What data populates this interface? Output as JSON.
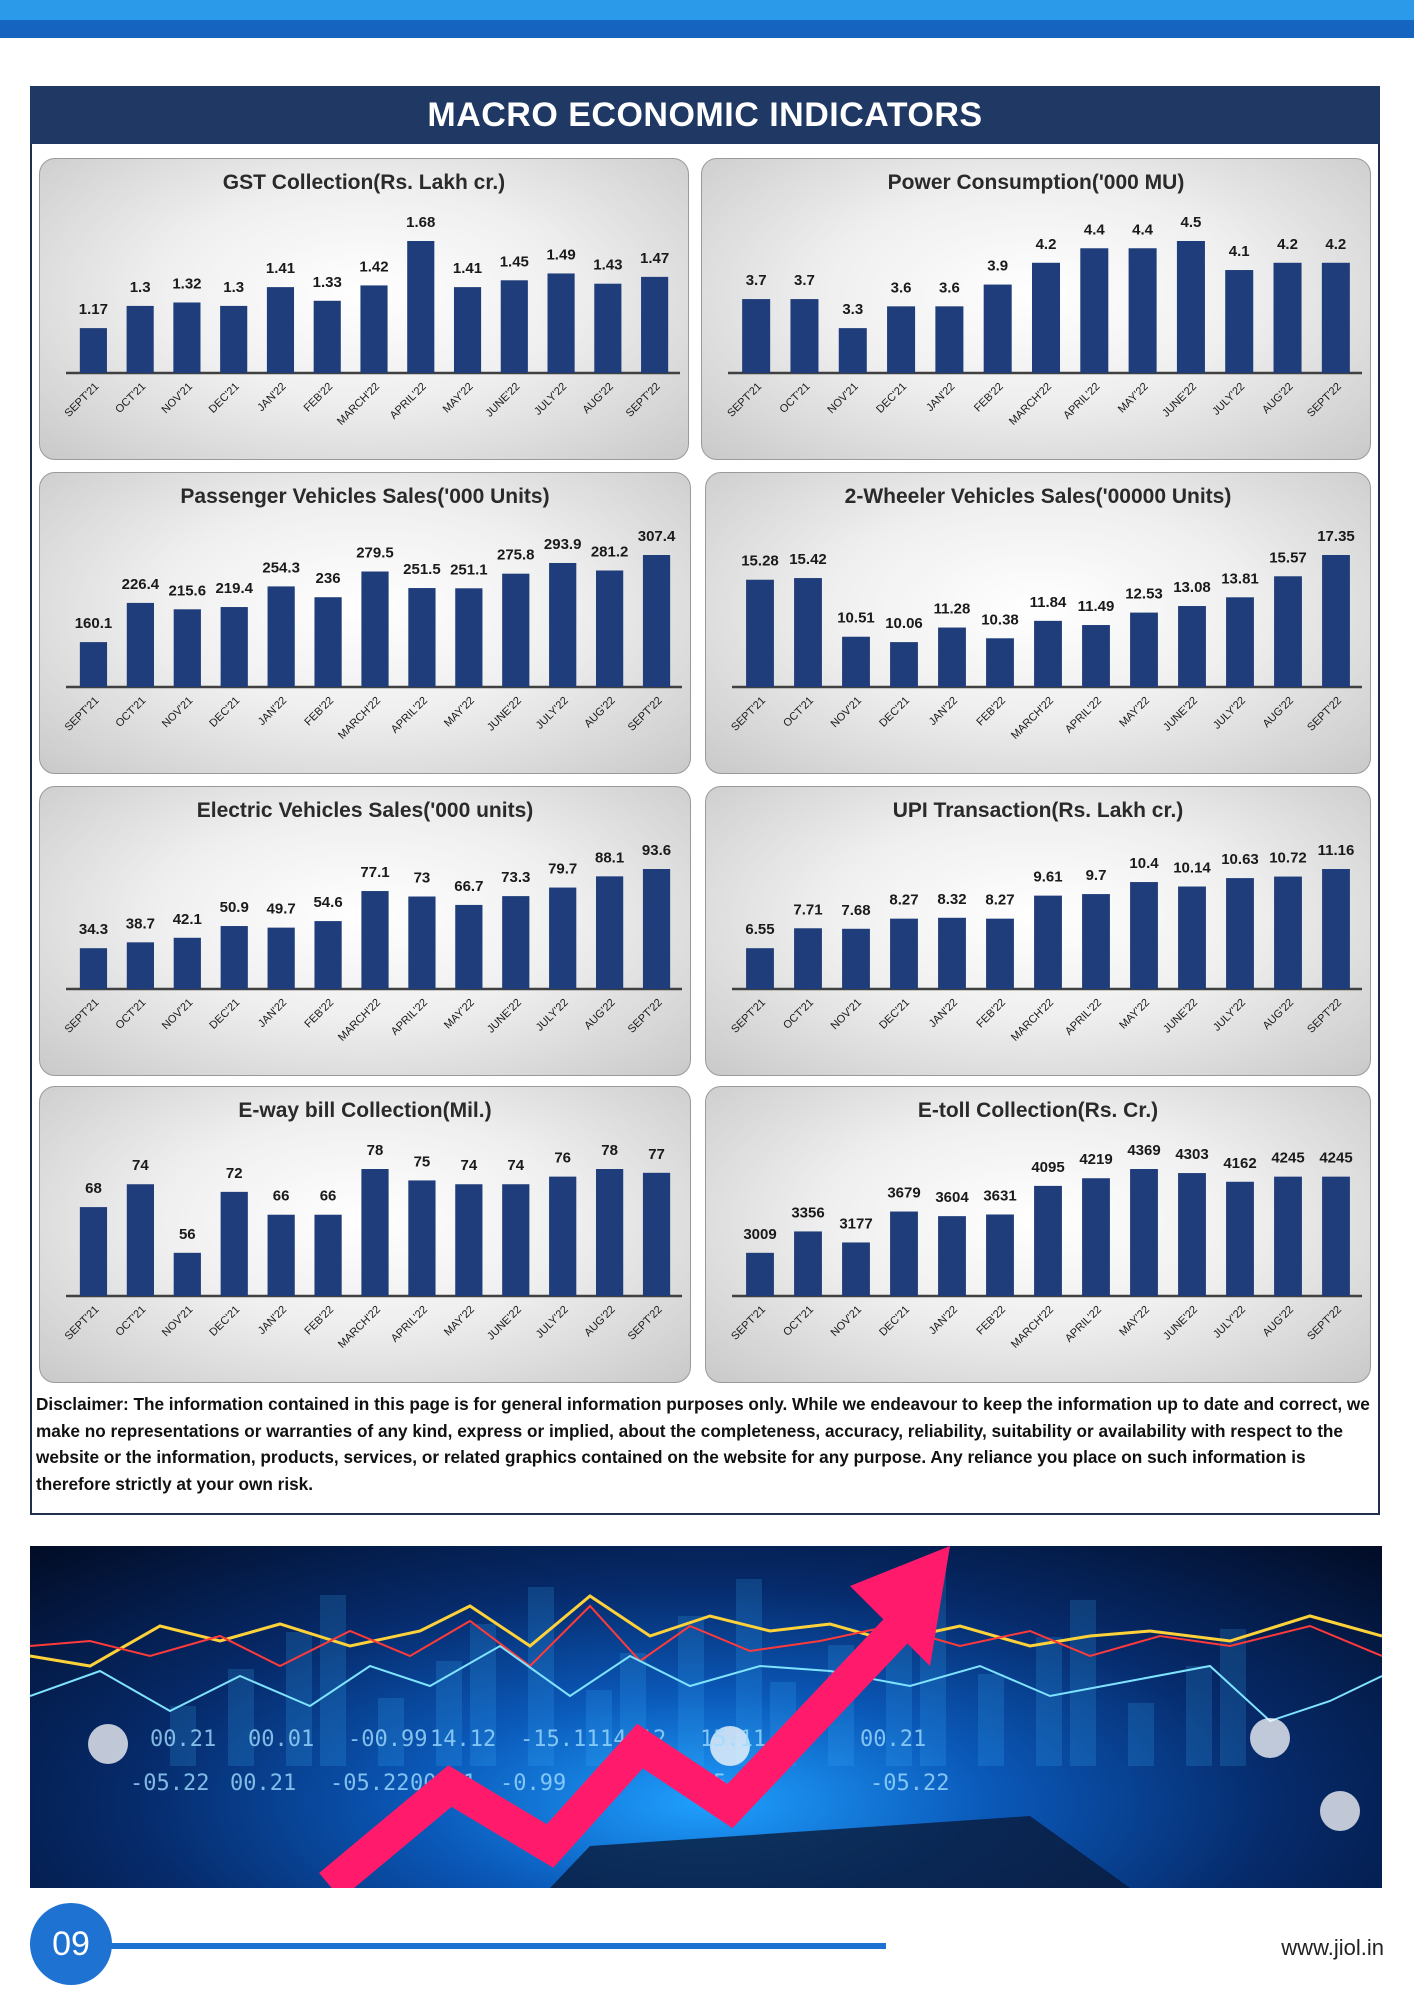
{
  "page": {
    "title": "MACRO ECONOMIC INDICATORS",
    "disclaimer": "Disclaimer: The information contained in this page is for general information purposes only.  While we endeavour to keep the information up to date and correct, we make no representations or warranties of any kind, express or implied, about the completeness, accuracy, reliability, suitability or availability with respect to the website or the information, products, services, or related graphics contained on the website for any purpose. Any reliance you place on such information is therefore strictly at your own risk.",
    "page_number": "09",
    "website": "www.jiol.in",
    "colors": {
      "bar": "#1f3d7a",
      "title_bar": "#1f3864",
      "top_bar": "#2b9ae8",
      "accent": "#1e73d2",
      "arrow": "#ff1a6b"
    }
  },
  "banner": {
    "tickers": [
      "00.21",
      "00.01",
      "-00.99",
      "14.12",
      "-15.11",
      "14.12",
      "15.11",
      "00.21",
      "-05.22",
      "00.21",
      "-05.22",
      "00.21",
      "-0.99",
      "15.11",
      "-05.22"
    ]
  },
  "chart_data": [
    {
      "type": "bar",
      "title": "GST Collection(Rs. Lakh cr.)",
      "categories": [
        "SEPT'21",
        "OCT'21",
        "NOV'21",
        "DEC'21",
        "JAN'22",
        "FEB'22",
        "MARCH'22",
        "APRIL'22",
        "MAY'22",
        "JUNE'22",
        "JULY'22",
        "AUG'22",
        "SEPT'22"
      ],
      "labels": [
        "1.17",
        "1.3",
        "1.32",
        "1.3",
        "1.41",
        "1.33",
        "1.42",
        "1.68",
        "1.41",
        "1.45",
        "1.49",
        "1.43",
        "1.47"
      ],
      "values": [
        1.17,
        1.3,
        1.32,
        1.3,
        1.41,
        1.33,
        1.42,
        1.68,
        1.41,
        1.45,
        1.49,
        1.43,
        1.47
      ]
    },
    {
      "type": "bar",
      "title": "Power Consumption('000 MU)",
      "categories": [
        "SEPT'21",
        "OCT'21",
        "NOV'21",
        "DEC'21",
        "JAN'22",
        "FEB'22",
        "MARCH'22",
        "APRIL'22",
        "MAY'22",
        "JUNE'22",
        "JULY'22",
        "AUG'22",
        "SEPT'22"
      ],
      "labels": [
        "3.7",
        "3.7",
        "3.3",
        "3.6",
        "3.6",
        "3.9",
        "4.2",
        "4.4",
        "4.4",
        "4.5",
        "4.1",
        "4.2",
        "4.2"
      ],
      "values": [
        3.7,
        3.7,
        3.3,
        3.6,
        3.6,
        3.9,
        4.2,
        4.4,
        4.4,
        4.5,
        4.1,
        4.2,
        4.2
      ]
    },
    {
      "type": "bar",
      "title": "Passenger Vehicles Sales('000 Units)",
      "categories": [
        "SEPT'21",
        "OCT'21",
        "NOV'21",
        "DEC'21",
        "JAN'22",
        "FEB'22",
        "MARCH'22",
        "APRIL'22",
        "MAY'22",
        "JUNE'22",
        "JULY'22",
        "AUG'22",
        "SEPT'22"
      ],
      "labels": [
        "160.1",
        "226.4",
        "215.6",
        "219.4",
        "254.3",
        "236",
        "279.5",
        "251.5",
        "251.1",
        "275.8",
        "293.9",
        "281.2",
        "307.4"
      ],
      "values": [
        160.1,
        226.4,
        215.6,
        219.4,
        254.3,
        236,
        279.5,
        251.5,
        251.1,
        275.8,
        293.9,
        281.2,
        307.4
      ]
    },
    {
      "type": "bar",
      "title": "2-Wheeler Vehicles Sales('00000 Units)",
      "categories": [
        "SEPT'21",
        "OCT'21",
        "NOV'21",
        "DEC'21",
        "JAN'22",
        "FEB'22",
        "MARCH'22",
        "APRIL'22",
        "MAY'22",
        "JUNE'22",
        "JULY'22",
        "AUG'22",
        "SEPT'22"
      ],
      "labels": [
        "15.28",
        "15.42",
        "10.51",
        "10.06",
        "11.28",
        "10.38",
        "11.84",
        "11.49",
        "12.53",
        "13.08",
        "13.81",
        "15.57",
        "17.35"
      ],
      "values": [
        15.28,
        15.42,
        10.51,
        10.06,
        11.28,
        10.38,
        11.84,
        11.49,
        12.53,
        13.08,
        13.81,
        15.57,
        17.35
      ]
    },
    {
      "type": "bar",
      "title": "Electric Vehicles Sales('000 units)",
      "categories": [
        "SEPT'21",
        "OCT'21",
        "NOV'21",
        "DEC'21",
        "JAN'22",
        "FEB'22",
        "MARCH'22",
        "APRIL'22",
        "MAY'22",
        "JUNE'22",
        "JULY'22",
        "AUG'22",
        "SEPT'22"
      ],
      "labels": [
        "34.3",
        "38.7",
        "42.1",
        "50.9",
        "49.7",
        "54.6",
        "77.1",
        "73",
        "66.7",
        "73.3",
        "79.7",
        "88.1",
        "93.6"
      ],
      "values": [
        34.3,
        38.7,
        42.1,
        50.9,
        49.7,
        54.6,
        77.1,
        73,
        66.7,
        73.3,
        79.7,
        88.1,
        93.6
      ]
    },
    {
      "type": "bar",
      "title": "UPI Transaction(Rs. Lakh cr.)",
      "categories": [
        "SEPT'21",
        "OCT'21",
        "NOV'21",
        "DEC'21",
        "JAN'22",
        "FEB'22",
        "MARCH'22",
        "APRIL'22",
        "MAY'22",
        "JUNE'22",
        "JULY'22",
        "AUG'22",
        "SEPT'22"
      ],
      "labels": [
        "6.55",
        "7.71",
        "7.68",
        "8.27",
        "8.32",
        "8.27",
        "9.61",
        "9.7",
        "10.4",
        "10.14",
        "10.63",
        "10.72",
        "11.16"
      ],
      "values": [
        6.55,
        7.71,
        7.68,
        8.27,
        8.32,
        8.27,
        9.61,
        9.7,
        10.4,
        10.14,
        10.63,
        10.72,
        11.16
      ]
    },
    {
      "type": "bar",
      "title": "E-way bill Collection(Mil.)",
      "categories": [
        "SEPT'21",
        "OCT'21",
        "NOV'21",
        "DEC'21",
        "JAN'22",
        "FEB'22",
        "MARCH'22",
        "APRIL'22",
        "MAY'22",
        "JUNE'22",
        "JULY'22",
        "AUG'22",
        "SEPT'22"
      ],
      "labels": [
        "68",
        "74",
        "56",
        "72",
        "66",
        "66",
        "78",
        "75",
        "74",
        "74",
        "76",
        "78",
        "77"
      ],
      "values": [
        68,
        74,
        56,
        72,
        66,
        66,
        78,
        75,
        74,
        74,
        76,
        78,
        77
      ]
    },
    {
      "type": "bar",
      "title": "E-toll Collection(Rs. Cr.)",
      "categories": [
        "SEPT'21",
        "OCT'21",
        "NOV'21",
        "DEC'21",
        "JAN'22",
        "FEB'22",
        "MARCH'22",
        "APRIL'22",
        "MAY'22",
        "JUNE'22",
        "JULY'22",
        "AUG'22",
        "SEPT'22"
      ],
      "labels": [
        "3009",
        "3356",
        "3177",
        "3679",
        "3604",
        "3631",
        "4095",
        "4219",
        "4369",
        "4303",
        "4162",
        "4245",
        "4245"
      ],
      "values": [
        3009,
        3356,
        3177,
        3679,
        3604,
        3631,
        4095,
        4219,
        4369,
        4303,
        4162,
        4245,
        4245
      ]
    }
  ]
}
